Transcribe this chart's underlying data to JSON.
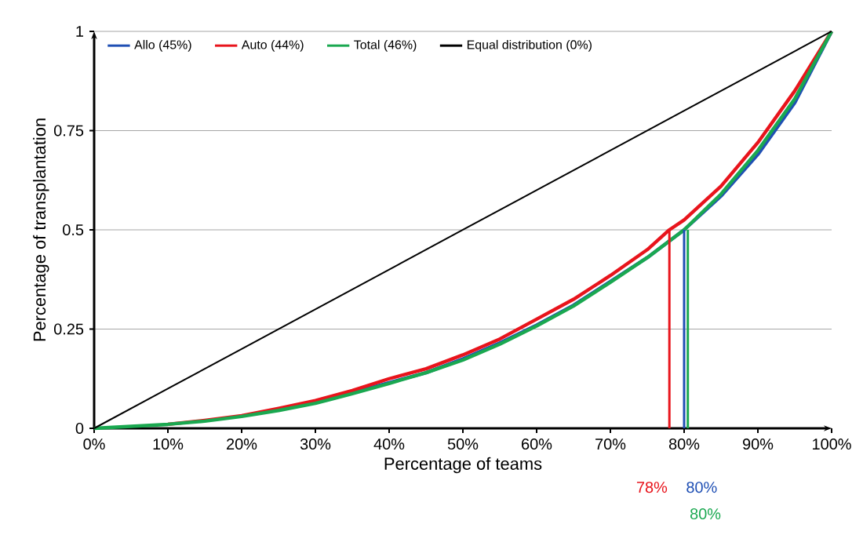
{
  "chart_data": {
    "type": "line",
    "xlabel": "Percentage of teams",
    "ylabel": "Percentage of transplantation",
    "xlim": [
      0,
      100
    ],
    "ylim": [
      0,
      1
    ],
    "xticks": [
      {
        "value": 0,
        "label": "0%"
      },
      {
        "value": 10,
        "label": "10%"
      },
      {
        "value": 20,
        "label": "20%"
      },
      {
        "value": 30,
        "label": "30%"
      },
      {
        "value": 40,
        "label": "40%"
      },
      {
        "value": 50,
        "label": "50%"
      },
      {
        "value": 60,
        "label": "60%"
      },
      {
        "value": 70,
        "label": "70%"
      },
      {
        "value": 80,
        "label": "80%"
      },
      {
        "value": 90,
        "label": "90%"
      },
      {
        "value": 100,
        "label": "100%"
      }
    ],
    "yticks": [
      0,
      0.25,
      0.5,
      0.75,
      1
    ],
    "grid": "y",
    "legend": "top",
    "marker": "none",
    "line_style": "solid",
    "series": [
      {
        "name": "Allo (45%)",
        "color": "#1f4fb4",
        "x": [
          30,
          35,
          40,
          45,
          50,
          55,
          60,
          65,
          70,
          75,
          80,
          85,
          90,
          95,
          100
        ],
        "values": [
          0.065,
          0.09,
          0.115,
          0.14,
          0.175,
          0.215,
          0.26,
          0.31,
          0.37,
          0.43,
          0.5,
          0.585,
          0.69,
          0.82,
          1
        ]
      },
      {
        "name": "Auto (44%)",
        "color": "#e8141c",
        "x": [
          10,
          15,
          20,
          25,
          30,
          35,
          40,
          45,
          50,
          55,
          60,
          65,
          70,
          75,
          78,
          80,
          85,
          90,
          95,
          100
        ],
        "values": [
          0.01,
          0.02,
          0.032,
          0.05,
          0.07,
          0.095,
          0.125,
          0.15,
          0.185,
          0.225,
          0.275,
          0.325,
          0.385,
          0.45,
          0.5,
          0.525,
          0.61,
          0.72,
          0.85,
          1
        ]
      },
      {
        "name": "Total (46%)",
        "color": "#1aa850",
        "x": [
          0,
          5,
          10,
          15,
          20,
          25,
          30,
          35,
          40,
          45,
          50,
          55,
          60,
          65,
          70,
          75,
          80,
          85,
          90,
          95,
          100
        ],
        "values": [
          0,
          0.005,
          0.01,
          0.018,
          0.03,
          0.045,
          0.063,
          0.087,
          0.113,
          0.14,
          0.172,
          0.212,
          0.258,
          0.308,
          0.368,
          0.43,
          0.5,
          0.59,
          0.7,
          0.83,
          1
        ]
      },
      {
        "name": "Equal distribution (0%)",
        "color": "#000000",
        "x": [
          0,
          10,
          20,
          30,
          40,
          50,
          60,
          70,
          80,
          90,
          100
        ],
        "values": [
          0,
          0.1,
          0.2,
          0.3,
          0.4,
          0.5,
          0.6,
          0.7,
          0.8,
          0.9,
          1
        ]
      },
      {
        "color": "#e8141c",
        "x": [
          78,
          78
        ],
        "values": [
          0,
          0.5
        ]
      },
      {
        "color": "#1f4fb4",
        "x": [
          80,
          80
        ],
        "values": [
          0,
          0.5
        ]
      },
      {
        "color": "#1aa850",
        "x": [
          80.5,
          80.5
        ],
        "values": [
          0,
          0.5
        ]
      }
    ],
    "annotations": [
      "78%",
      "80%",
      "80%"
    ]
  }
}
